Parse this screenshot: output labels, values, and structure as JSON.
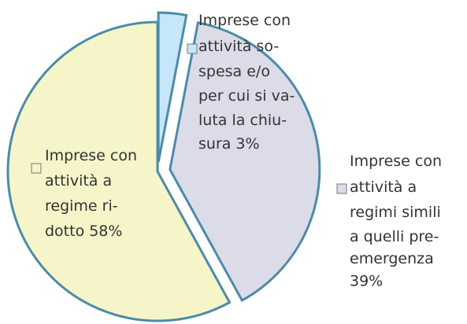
{
  "chart_data": {
    "type": "pie",
    "categories": [
      [
        "Imprese con",
        "attività so-",
        "spesa e/o",
        "per cui si va-",
        "luta la chiu-",
        "sura"
      ],
      [
        "Imprese con",
        "attività a",
        "regimi simili",
        "a quelli pre-",
        "emergenza"
      ],
      [
        "Imprese con",
        "attività a",
        "regime ri-",
        "dotto"
      ]
    ],
    "values": [
      3,
      39,
      58
    ],
    "value_labels": [
      "3%",
      "39%",
      "58%"
    ],
    "colors": [
      "#c6e6fa",
      "#dcdce9",
      "#f5f5c9"
    ],
    "edge_color": "#4c8ba8"
  }
}
